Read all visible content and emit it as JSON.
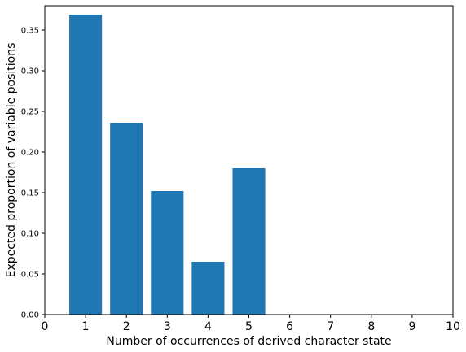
{
  "chart_data": {
    "type": "bar",
    "x": [
      1,
      2,
      3,
      4,
      5
    ],
    "values": [
      0.369,
      0.236,
      0.152,
      0.065,
      0.18
    ],
    "color": "#1f77b4",
    "xlabel": "Number of occurrences of derived character state",
    "ylabel": "Expected proportion of variable positions",
    "xlim": [
      0,
      10
    ],
    "ylim": [
      0,
      0.38
    ],
    "xticks": [
      0,
      1,
      2,
      3,
      4,
      5,
      6,
      7,
      8,
      9,
      10
    ],
    "yticks": [
      0.0,
      0.05,
      0.1,
      0.15,
      0.2,
      0.25,
      0.3,
      0.35
    ],
    "ytick_labels": [
      "0.00",
      "0.05",
      "0.10",
      "0.15",
      "0.20",
      "0.25",
      "0.30",
      "0.35"
    ],
    "grid": false,
    "legend": "none"
  }
}
